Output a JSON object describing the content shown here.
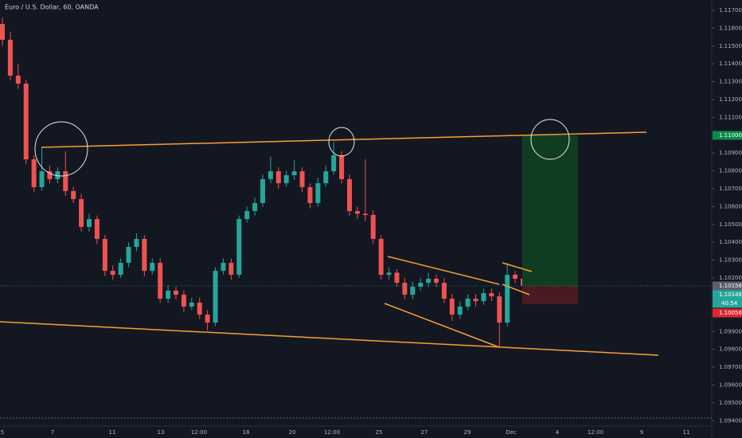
{
  "chart_data": {
    "type": "candlestick",
    "title": "Euro / U.S. Dollar, 60, OANDA",
    "xtick_labels": [
      "5",
      "7",
      "11",
      "13",
      "12:00",
      "18",
      "20",
      "12:00",
      "25",
      "27",
      "29",
      "Dec",
      "4",
      "12:00",
      "9",
      "11"
    ],
    "open": [
      1.11624,
      1.11535,
      1.11334,
      1.11289,
      1.10865,
      1.10709,
      1.10798,
      1.10754,
      1.10798,
      1.10687,
      1.10642,
      1.10486,
      1.1053,
      1.10419,
      1.1024,
      1.10218,
      1.10285,
      1.10374,
      1.10419,
      1.1024,
      1.10285,
      1.10084,
      1.10129,
      1.10106,
      1.1004,
      1.10062,
      1.09995,
      1.0995,
      1.1024,
      1.10285,
      1.10218,
      1.1053,
      1.10575,
      1.1062,
      1.10754,
      1.10798,
      1.10731,
      1.10776,
      1.10798,
      1.10709,
      1.1062,
      1.10731,
      1.10798,
      1.10888,
      1.10754,
      1.10575,
      1.1056,
      1.10553,
      1.10419,
      1.10218,
      1.1023,
      1.10173,
      1.10106,
      1.10151,
      1.10173,
      1.10196,
      1.10173,
      1.10084,
      1.09995,
      1.1004,
      1.10084,
      1.1007,
      1.10115,
      1.10097,
      1.0995,
      1.10218,
      1.10196
    ],
    "high": [
      1.1166,
      1.1158,
      1.11401,
      1.1131,
      1.1089,
      1.10932,
      1.1083,
      1.1082,
      1.1091,
      1.1071,
      1.1067,
      1.1056,
      1.1055,
      1.1044,
      1.1027,
      1.1031,
      1.104,
      1.1045,
      1.1044,
      1.1031,
      1.1031,
      1.1016,
      1.1015,
      1.1013,
      1.1009,
      1.1009,
      1.1002,
      1.1026,
      1.1031,
      1.1031,
      1.1055,
      1.106,
      1.1065,
      1.1078,
      1.1088,
      1.1082,
      1.108,
      1.1086,
      1.1082,
      1.1073,
      1.1076,
      1.1083,
      1.10964,
      1.1091,
      1.1078,
      1.106,
      1.10865,
      1.1058,
      1.1044,
      1.1026,
      1.1025,
      1.102,
      1.1018,
      1.102,
      1.1023,
      1.1022,
      1.102,
      1.1011,
      1.1007,
      1.1011,
      1.1011,
      1.1014,
      1.1014,
      1.1012,
      1.10285,
      1.1024,
      1.1021
    ],
    "low": [
      1.115,
      1.1131,
      1.1126,
      1.1084,
      1.1068,
      1.1069,
      1.1073,
      1.1073,
      1.1066,
      1.1062,
      1.1046,
      1.1046,
      1.1039,
      1.1021,
      1.1019,
      1.102,
      1.1026,
      1.1035,
      1.1021,
      1.1022,
      1.1006,
      1.1006,
      1.1008,
      1.1001,
      1.1002,
      1.0997,
      1.09905,
      1.0993,
      1.1022,
      1.1019,
      1.102,
      1.1051,
      1.1055,
      1.106,
      1.1073,
      1.107,
      1.1071,
      1.1075,
      1.1068,
      1.1059,
      1.106,
      1.1071,
      1.1078,
      1.1073,
      1.1055,
      1.1053,
      1.1052,
      1.1039,
      1.1019,
      1.1019,
      1.1015,
      1.1008,
      1.1008,
      1.1013,
      1.1015,
      1.1015,
      1.1006,
      1.0996,
      1.0997,
      1.1002,
      1.1004,
      1.1005,
      1.1007,
      1.09816,
      1.0993,
      1.1017,
      1.1013
    ],
    "close": [
      1.11535,
      1.11334,
      1.11289,
      1.10865,
      1.10709,
      1.10798,
      1.10754,
      1.10798,
      1.10687,
      1.10642,
      1.10486,
      1.1053,
      1.10419,
      1.1024,
      1.10218,
      1.10285,
      1.10374,
      1.10419,
      1.1024,
      1.10285,
      1.10084,
      1.10129,
      1.10106,
      1.1004,
      1.10062,
      1.09995,
      1.0995,
      1.1024,
      1.10285,
      1.10218,
      1.1053,
      1.10575,
      1.1062,
      1.10754,
      1.10798,
      1.10731,
      1.10776,
      1.10798,
      1.10709,
      1.1062,
      1.10731,
      1.10798,
      1.10888,
      1.10754,
      1.10575,
      1.1056,
      1.10553,
      1.10419,
      1.10218,
      1.1023,
      1.10173,
      1.10106,
      1.10151,
      1.10173,
      1.10196,
      1.10173,
      1.10084,
      1.09995,
      1.1004,
      1.10084,
      1.1007,
      1.10115,
      1.10097,
      1.0995,
      1.10218,
      1.10196,
      1.10156
    ],
    "up_color": "#26a69a",
    "down_color": "#ef5350",
    "ylim": [
      1.0937,
      1.11758
    ],
    "yticks": [
      {
        "value": 1.117,
        "label": "1.11700"
      },
      {
        "value": 1.116,
        "label": "1.11600"
      },
      {
        "value": 1.115,
        "label": "1.11500"
      },
      {
        "value": 1.114,
        "label": "1.11400"
      },
      {
        "value": 1.113,
        "label": "1.11300"
      },
      {
        "value": 1.112,
        "label": "1.11200"
      },
      {
        "value": 1.111,
        "label": "1.11100"
      },
      {
        "value": 1.109,
        "label": "1.10900"
      },
      {
        "value": 1.108,
        "label": "1.10800"
      },
      {
        "value": 1.107,
        "label": "1.10700"
      },
      {
        "value": 1.106,
        "label": "1.10600"
      },
      {
        "value": 1.105,
        "label": "1.10500"
      },
      {
        "value": 1.104,
        "label": "1.10400"
      },
      {
        "value": 1.103,
        "label": "1.10300"
      },
      {
        "value": 1.102,
        "label": "1.10200"
      },
      {
        "value": 1.099,
        "label": "1.09900"
      },
      {
        "value": 1.098,
        "label": "1.09800"
      },
      {
        "value": 1.097,
        "label": "1.09700"
      },
      {
        "value": 1.096,
        "label": "1.09600"
      },
      {
        "value": 1.095,
        "label": "1.09500"
      },
      {
        "value": 1.094,
        "label": "1.09400"
      }
    ],
    "grid": false,
    "price_labels": [
      {
        "value": 1.11,
        "label": "1.11000",
        "color": "#0b8a4a"
      },
      {
        "value": 1.10156,
        "label": "1.10156",
        "color": "#5d606b"
      },
      {
        "value": 1.10148,
        "label": "1.10148",
        "color": "#26a69a"
      },
      {
        "value": 1.10056,
        "label": "1.10056",
        "color": "#e0262f"
      }
    ],
    "countdown": "40:54"
  }
}
